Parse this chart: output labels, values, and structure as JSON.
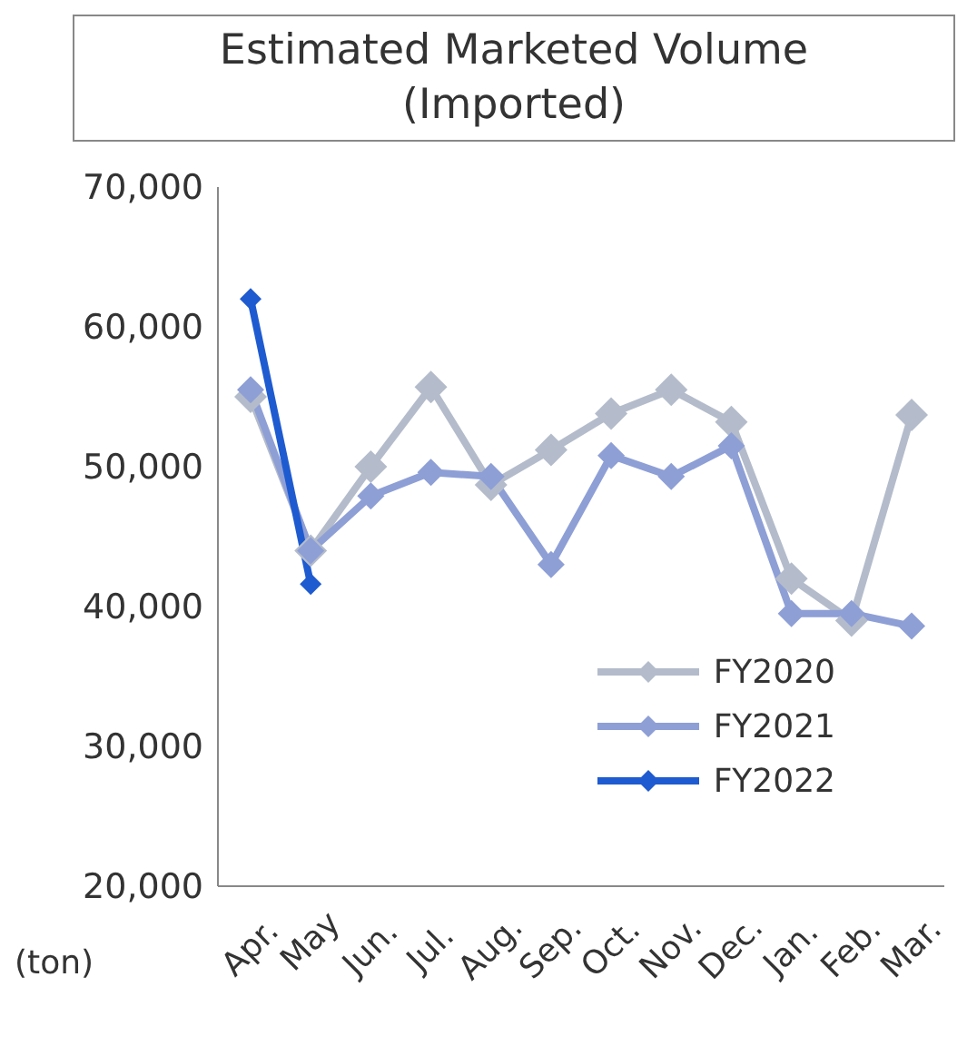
{
  "chart_data": {
    "type": "line",
    "title": "Estimated Marketed Volume (Imported)",
    "ylabel": "(ton)",
    "categories": [
      "Apr.",
      "May",
      "Jun.",
      "Jul.",
      "Aug.",
      "Sep.",
      "Oct.",
      "Nov.",
      "Dec.",
      "Jan.",
      "Feb.",
      "Mar."
    ],
    "series": [
      {
        "name": "FY2020",
        "color": "#b4bccb",
        "values": [
          55000,
          44000,
          50000,
          55700,
          48700,
          51200,
          53800,
          55500,
          53200,
          42000,
          39000,
          53700
        ]
      },
      {
        "name": "FY2021",
        "color": "#8e9fd6",
        "values": [
          55500,
          44000,
          47900,
          49600,
          49300,
          43000,
          50800,
          49300,
          51500,
          39500,
          39500,
          38600
        ]
      },
      {
        "name": "FY2022",
        "color": "#1f5bd0",
        "x": [
          "Apr.",
          "May"
        ],
        "values": [
          62000,
          41600
        ]
      }
    ],
    "ylim": [
      20000,
      70000
    ],
    "yticks": [
      {
        "value": 20000,
        "label": "20,000"
      },
      {
        "value": 30000,
        "label": "30,000"
      },
      {
        "value": 40000,
        "label": "40,000"
      },
      {
        "value": 50000,
        "label": "50,000"
      },
      {
        "value": 60000,
        "label": "60,000"
      },
      {
        "value": 70000,
        "label": "70,000"
      }
    ],
    "grid": false,
    "legend": "bottom right",
    "marker": "diamond",
    "line_style": "solid"
  }
}
